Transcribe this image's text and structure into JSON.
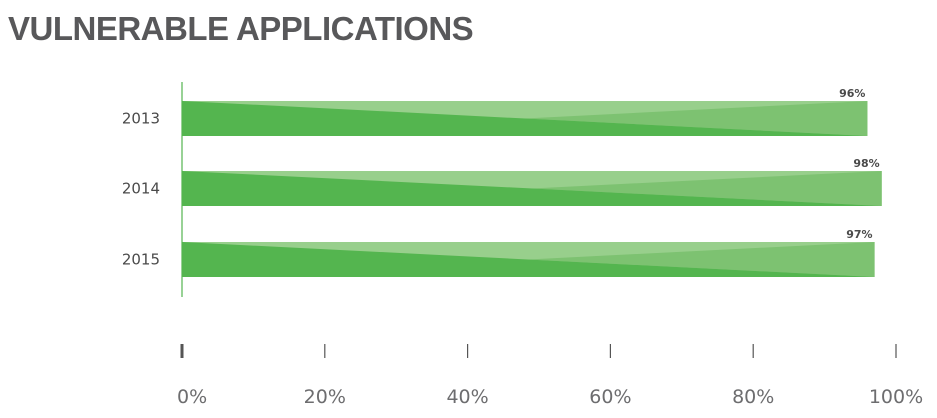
{
  "chart_data": {
    "type": "bar",
    "orientation": "horizontal",
    "title": "VULNERABLE APPLICATIONS",
    "categories": [
      "2013",
      "2014",
      "2015"
    ],
    "values": [
      96,
      98,
      97
    ],
    "value_labels": [
      "96%",
      "98%",
      "97%"
    ],
    "xlim": [
      0,
      100
    ],
    "xticks": [
      "0%",
      "20%",
      "40%",
      "60%",
      "80%",
      "100%"
    ],
    "xlabel": "",
    "ylabel": "",
    "grid": false,
    "legend": "none",
    "colors": {
      "bar_dark": "#54b54f",
      "bar_mid": "#7dc271",
      "bar_light": "#98cf8c",
      "axis": "#54b54f",
      "tick": "#555555",
      "title": "#58585a"
    }
  }
}
